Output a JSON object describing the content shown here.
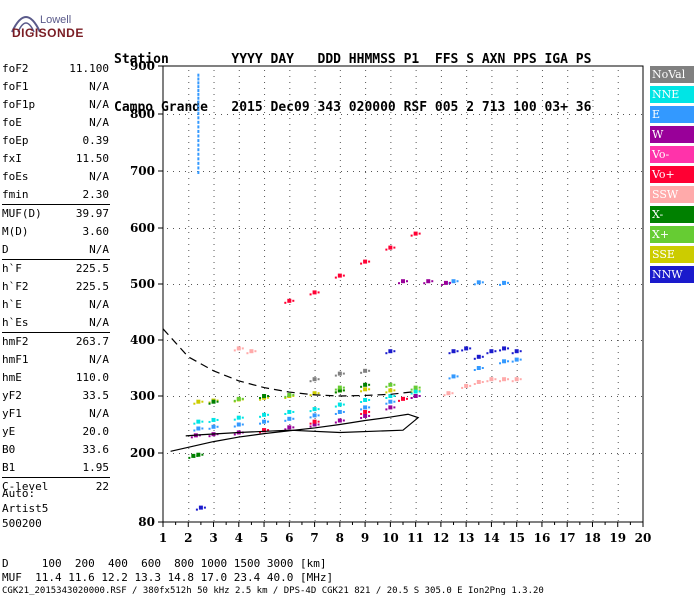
{
  "logo": {
    "line1": "Lowell",
    "line2": "DIGISONDE"
  },
  "header": {
    "line1": "Station        YYYY DAY   DDD HHMMSS P1  FFS S AXN PPS IGA PS",
    "line2": "Campo Grande   2015 Dec09 343 020000 RSF 005 2 713 100 03+ 36"
  },
  "params": [
    [
      {
        "k": "foF2",
        "v": "11.100"
      },
      {
        "k": "foF1",
        "v": "N/A"
      },
      {
        "k": "foF1p",
        "v": "N/A"
      },
      {
        "k": "foE",
        "v": "N/A"
      },
      {
        "k": "foEp",
        "v": "0.39"
      },
      {
        "k": "fxI",
        "v": "11.50"
      },
      {
        "k": "foEs",
        "v": "N/A"
      },
      {
        "k": "fmin",
        "v": "2.30"
      }
    ],
    [
      {
        "k": "MUF(D)",
        "v": "39.97"
      },
      {
        "k": "M(D)",
        "v": "3.60"
      },
      {
        "k": "D",
        "v": "N/A"
      }
    ],
    [
      {
        "k": "h`F",
        "v": "225.5"
      },
      {
        "k": "h`F2",
        "v": "225.5"
      },
      {
        "k": "h`E",
        "v": "N/A"
      },
      {
        "k": "h`Es",
        "v": "N/A"
      }
    ],
    [
      {
        "k": "hmF2",
        "v": "263.7"
      },
      {
        "k": "hmF1",
        "v": "N/A"
      },
      {
        "k": "hmE",
        "v": "110.0"
      },
      {
        "k": "yF2",
        "v": "33.5"
      },
      {
        "k": "yF1",
        "v": "N/A"
      },
      {
        "k": "yE",
        "v": "20.0"
      },
      {
        "k": "B0",
        "v": "33.6"
      },
      {
        "k": "B1",
        "v": "1.95"
      }
    ],
    [
      {
        "k": "C-level",
        "v": "22"
      }
    ]
  ],
  "auto": {
    "line1": "Auto:",
    "line2": "Artist5",
    "line3": "500200"
  },
  "footer": {
    "d_line": "D     100  200  400  600  800 1000 1500 3000 [km]",
    "muf_line": "MUF  11.4 11.6 12.2 13.3 14.8 17.0 23.4 40.0 [MHz]",
    "file_line": "CGK21_2015343020000.RSF / 380fx512h 50 kHz 2.5 km / DPS-4D CGK21 821 / 20.5 S 305.0 E Ion2Png 1.3.20"
  },
  "legend": [
    {
      "name": "NoVal",
      "color": "#808080"
    },
    {
      "name": "NNE",
      "color": "#00e5e5"
    },
    {
      "name": "E",
      "color": "#3399ff"
    },
    {
      "name": "W",
      "color": "#990099"
    },
    {
      "name": "Vo-",
      "color": "#ff33aa"
    },
    {
      "name": "Vo+",
      "color": "#ff0033"
    },
    {
      "name": "SSW",
      "color": "#ffaaaa"
    },
    {
      "name": "X-",
      "color": "#008000"
    },
    {
      "name": "X+",
      "color": "#66cc33"
    },
    {
      "name": "SSE",
      "color": "#cccc00"
    },
    {
      "name": "NNW",
      "color": "#1a1acc"
    }
  ],
  "chart_data": {
    "type": "scatter",
    "xlabel": "",
    "ylabel": "",
    "xlim": [
      1,
      20
    ],
    "ylim": [
      80,
      900
    ],
    "x_ticks": [
      "1",
      "2",
      "3",
      "4",
      "5",
      "6",
      "7",
      "8",
      "9",
      "10",
      "11",
      "12",
      "13",
      "14",
      "15",
      "16",
      "17",
      "18",
      "19",
      "20"
    ],
    "y_ticks": [
      "80",
      "200",
      "300",
      "400",
      "500",
      "600",
      "700",
      "800",
      "900"
    ],
    "y_tick_values": [
      80,
      200,
      300,
      400,
      500,
      600,
      700,
      800,
      900
    ],
    "grid": true,
    "legend_position": "right",
    "series": [
      {
        "name": "SSE",
        "color": "#cccc00",
        "points": [
          [
            2.4,
            290
          ],
          [
            3,
            292
          ],
          [
            4,
            294
          ],
          [
            5,
            297
          ],
          [
            6,
            300
          ],
          [
            7,
            305
          ],
          [
            8,
            310
          ],
          [
            9,
            312
          ],
          [
            10,
            310
          ],
          [
            11,
            310
          ]
        ]
      },
      {
        "name": "NNE",
        "color": "#00e5e5",
        "points": [
          [
            2.4,
            255
          ],
          [
            3,
            258
          ],
          [
            4,
            262
          ],
          [
            5,
            267
          ],
          [
            6,
            272
          ],
          [
            7,
            277
          ],
          [
            8,
            285
          ],
          [
            9,
            293
          ],
          [
            10,
            300
          ],
          [
            11,
            308
          ]
        ]
      },
      {
        "name": "E",
        "color": "#3399ff",
        "points": [
          [
            2.4,
            243
          ],
          [
            3,
            246
          ],
          [
            4,
            250
          ],
          [
            5,
            255
          ],
          [
            6,
            260
          ],
          [
            7,
            266
          ],
          [
            8,
            272
          ],
          [
            9,
            280
          ],
          [
            10,
            290
          ],
          [
            11,
            300
          ],
          [
            12.5,
            335
          ],
          [
            13.5,
            350
          ],
          [
            14.5,
            362
          ],
          [
            15,
            365
          ],
          [
            12.5,
            505
          ],
          [
            13.5,
            503
          ],
          [
            14.5,
            502
          ]
        ]
      },
      {
        "name": "W",
        "color": "#990099",
        "points": [
          [
            2.3,
            231
          ],
          [
            3,
            233
          ],
          [
            4,
            236
          ],
          [
            5,
            240
          ],
          [
            6,
            245
          ],
          [
            7,
            250
          ],
          [
            8,
            257
          ],
          [
            9,
            265
          ],
          [
            10,
            280
          ],
          [
            11,
            300
          ],
          [
            10.5,
            505
          ],
          [
            11.5,
            505
          ],
          [
            12.2,
            502
          ]
        ]
      },
      {
        "name": "Vo+",
        "color": "#ff0033",
        "points": [
          [
            5,
            240
          ],
          [
            7,
            255
          ],
          [
            9,
            272
          ],
          [
            10.5,
            295
          ],
          [
            6,
            470
          ],
          [
            7,
            485
          ],
          [
            8,
            515
          ],
          [
            9,
            540
          ],
          [
            10,
            565
          ],
          [
            11,
            590
          ]
        ]
      },
      {
        "name": "SSW",
        "color": "#ffaaaa",
        "points": [
          [
            4,
            385
          ],
          [
            4.5,
            380
          ],
          [
            12.3,
            305
          ],
          [
            13,
            318
          ],
          [
            13.5,
            325
          ],
          [
            14,
            330
          ],
          [
            14.5,
            330
          ],
          [
            15,
            330
          ]
        ]
      },
      {
        "name": "NNW",
        "color": "#1a1acc",
        "points": [
          [
            12.5,
            380
          ],
          [
            13,
            385
          ],
          [
            13.5,
            370
          ],
          [
            14,
            380
          ],
          [
            14.5,
            385
          ],
          [
            15,
            380
          ],
          [
            10,
            380
          ],
          [
            2.5,
            105
          ]
        ]
      },
      {
        "name": "X-",
        "color": "#008000",
        "points": [
          [
            2.2,
            195
          ],
          [
            2.4,
            197
          ],
          [
            3,
            290
          ],
          [
            5,
            300
          ],
          [
            8,
            310
          ],
          [
            9,
            320
          ]
        ]
      },
      {
        "name": "X+",
        "color": "#66cc33",
        "points": [
          [
            4,
            295
          ],
          [
            6,
            302
          ],
          [
            8,
            315
          ],
          [
            10,
            320
          ],
          [
            11,
            315
          ]
        ]
      },
      {
        "name": "NoVal",
        "color": "#808080",
        "points": [
          [
            7,
            330
          ],
          [
            8,
            340
          ],
          [
            9,
            345
          ]
        ]
      }
    ],
    "vertical_trace": {
      "x": 2.4,
      "y_from": 700,
      "y_to": 890,
      "color": "#3399ff"
    },
    "profile_solid": [
      [
        1.3,
        203
      ],
      [
        2,
        210
      ],
      [
        3,
        220
      ],
      [
        4,
        228
      ],
      [
        5,
        234
      ],
      [
        6,
        239
      ],
      [
        7,
        244
      ],
      [
        8,
        250
      ],
      [
        9,
        257
      ],
      [
        10,
        263
      ],
      [
        10.7,
        268
      ],
      [
        11.1,
        262
      ],
      [
        10.5,
        240
      ],
      [
        8,
        236
      ],
      [
        6,
        240
      ],
      [
        4,
        236
      ],
      [
        2.5,
        232
      ],
      [
        1.9,
        230
      ]
    ],
    "profile_dashed": [
      [
        1,
        420
      ],
      [
        1.5,
        395
      ],
      [
        2,
        370
      ],
      [
        3,
        345
      ],
      [
        4,
        327
      ],
      [
        5,
        315
      ],
      [
        6,
        307
      ],
      [
        7,
        302
      ],
      [
        8,
        300
      ],
      [
        9,
        301
      ],
      [
        10,
        303
      ],
      [
        11,
        308
      ]
    ]
  }
}
